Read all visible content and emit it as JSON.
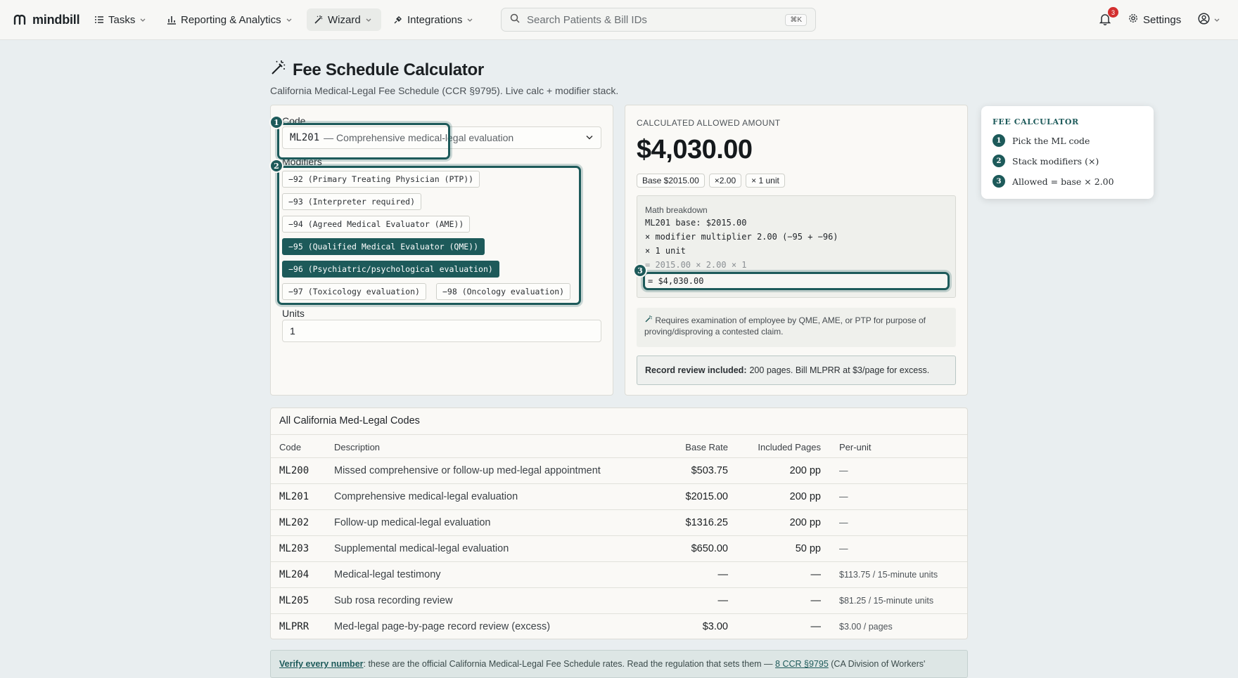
{
  "nav": {
    "brand": "mindbill",
    "items": [
      {
        "label": "Tasks"
      },
      {
        "label": "Reporting & Analytics"
      },
      {
        "label": "Wizard"
      },
      {
        "label": "Integrations"
      }
    ],
    "search_placeholder": "Search Patients & Bill IDs",
    "search_shortcut": "⌘K",
    "notifications_count": "3",
    "settings_label": "Settings"
  },
  "page": {
    "title": "Fee Schedule Calculator",
    "subtitle": "California Medical-Legal Fee Schedule (CCR §9795). Live calc + modifier stack."
  },
  "form": {
    "code_label": "Code",
    "code_value": "ML201",
    "code_desc": "— Comprehensive medical-legal evaluation",
    "modifiers_label": "Modifiers",
    "modifiers": [
      {
        "label": "−92 (Primary Treating Physician (PTP))",
        "selected": false
      },
      {
        "label": "−93 (Interpreter required)",
        "selected": false
      },
      {
        "label": "−94 (Agreed Medical Evaluator (AME))",
        "selected": false
      },
      {
        "label": "−95 (Qualified Medical Evaluator (QME))",
        "selected": true
      },
      {
        "label": "−96 (Psychiatric/psychological evaluation)",
        "selected": true
      },
      {
        "label": "−97 (Toxicology evaluation)",
        "selected": false
      },
      {
        "label": "−98 (Oncology evaluation)",
        "selected": false
      }
    ],
    "units_label": "Units",
    "units_value": "1",
    "steps": [
      "1",
      "2",
      "3"
    ]
  },
  "result": {
    "label": "CALCULATED ALLOWED AMOUNT",
    "amount": "$4,030.00",
    "pills": [
      "Base $2015.00",
      "×2.00",
      "× 1 unit"
    ],
    "math_title": "Math breakdown",
    "math_lines": [
      "ML201 base: $2015.00",
      "× modifier multiplier 2.00 (−95 + −96)",
      "× 1 unit",
      "= 2015.00 × 2.00 × 1"
    ],
    "math_result": "= $4,030.00",
    "note": "Requires examination of employee by QME, AME, or PTP for purpose of proving/disproving a contested claim.",
    "record_bold": "Record review included:",
    "record_text": "200 pages. Bill MLPRR at $3/page for excess."
  },
  "help": {
    "title": "FEE CALCULATOR",
    "steps": [
      {
        "n": "1",
        "text": "Pick the ML code"
      },
      {
        "n": "2",
        "text": "Stack modifiers (×)"
      },
      {
        "n": "3",
        "text": "Allowed = base × 2.00"
      }
    ]
  },
  "table": {
    "title": "All California Med-Legal Codes",
    "headers": {
      "code": "Code",
      "desc": "Description",
      "rate": "Base Rate",
      "pages": "Included Pages",
      "unit": "Per-unit"
    },
    "rows": [
      {
        "code": "ML200",
        "desc": "Missed comprehensive or follow-up med-legal appointment",
        "rate": "$503.75",
        "pages": "200 pp",
        "unit": "—"
      },
      {
        "code": "ML201",
        "desc": "Comprehensive medical-legal evaluation",
        "rate": "$2015.00",
        "pages": "200 pp",
        "unit": "—"
      },
      {
        "code": "ML202",
        "desc": "Follow-up medical-legal evaluation",
        "rate": "$1316.25",
        "pages": "200 pp",
        "unit": "—"
      },
      {
        "code": "ML203",
        "desc": "Supplemental medical-legal evaluation",
        "rate": "$650.00",
        "pages": "50 pp",
        "unit": "—"
      },
      {
        "code": "ML204",
        "desc": "Medical-legal testimony",
        "rate": "—",
        "pages": "—",
        "unit": "$113.75 / 15-minute units"
      },
      {
        "code": "ML205",
        "desc": "Sub rosa recording review",
        "rate": "—",
        "pages": "—",
        "unit": "$81.25 / 15-minute units"
      },
      {
        "code": "MLPRR",
        "desc": "Med-legal page-by-page record review (excess)",
        "rate": "$3.00",
        "pages": "—",
        "unit": "$3.00 / pages"
      }
    ]
  },
  "verify": {
    "lead": "Verify every number",
    "text": ": these are the official California Medical-Legal Fee Schedule rates. Read the regulation that sets them — ",
    "link": "8 CCR §9795",
    "tail": " (CA Division of Workers'"
  },
  "colors": {
    "accent": "#1d5a5a",
    "background": "#e9eef0",
    "card": "#faf9f6",
    "badge": "#d32f2f"
  }
}
